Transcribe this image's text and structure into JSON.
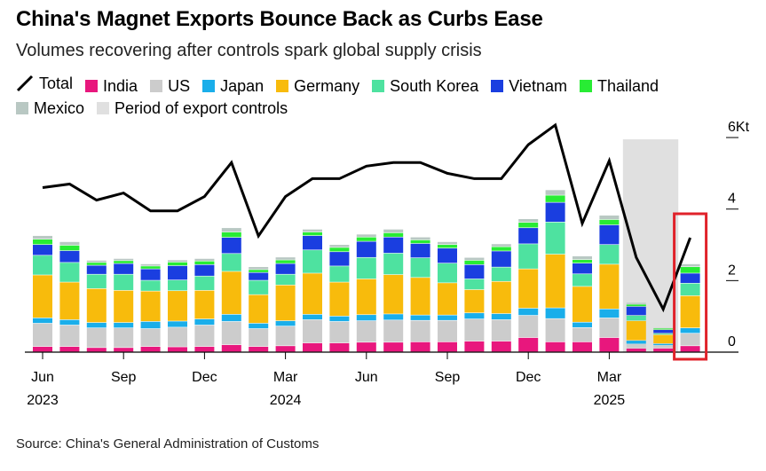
{
  "title": "China's Magnet Exports Bounce Back as Curbs Ease",
  "subtitle": "Volumes recovering after controls spark global supply crisis",
  "source": "Source: China's General Administration of Customs",
  "legend": [
    {
      "name": "Total",
      "color": "#000000",
      "kind": "line"
    },
    {
      "name": "India",
      "color": "#e8177d",
      "kind": "box"
    },
    {
      "name": "US",
      "color": "#cccccc",
      "kind": "box"
    },
    {
      "name": "Japan",
      "color": "#1aaeea",
      "kind": "box"
    },
    {
      "name": "Germany",
      "color": "#f8bb0c",
      "kind": "box"
    },
    {
      "name": "South Korea",
      "color": "#4ee2a0",
      "kind": "box"
    },
    {
      "name": "Vietnam",
      "color": "#1a3ee0",
      "kind": "box"
    },
    {
      "name": "Thailand",
      "color": "#28ec34",
      "kind": "box"
    },
    {
      "name": "Mexico",
      "color": "#b9c8c3",
      "kind": "box"
    },
    {
      "name": "Period of export controls",
      "color": "#e0e0e0",
      "kind": "box"
    }
  ],
  "chart_data": {
    "type": "bar",
    "categories": [
      "Jun 2023",
      "Jul 2023",
      "Aug 2023",
      "Sep 2023",
      "Oct 2023",
      "Nov 2023",
      "Dec 2023",
      "Jan 2024",
      "Feb 2024",
      "Mar 2024",
      "Apr 2024",
      "May 2024",
      "Jun 2024",
      "Jul 2024",
      "Aug 2024",
      "Sep 2024",
      "Oct 2024",
      "Nov 2024",
      "Dec 2024",
      "Jan 2025",
      "Feb 2025",
      "Mar 2025",
      "Apr 2025",
      "May 2025",
      "Jun 2025"
    ],
    "x_tick_labels": [
      {
        "index": 0,
        "label": "Jun",
        "year": "2023"
      },
      {
        "index": 3,
        "label": "Sep",
        "year": ""
      },
      {
        "index": 6,
        "label": "Dec",
        "year": ""
      },
      {
        "index": 9,
        "label": "Mar",
        "year": "2024"
      },
      {
        "index": 12,
        "label": "Jun",
        "year": ""
      },
      {
        "index": 15,
        "label": "Sep",
        "year": ""
      },
      {
        "index": 18,
        "label": "Dec",
        "year": ""
      },
      {
        "index": 21,
        "label": "Mar",
        "year": "2025"
      }
    ],
    "y_ticks": [
      {
        "value": 0,
        "label": "0"
      },
      {
        "value": 2,
        "label": "2"
      },
      {
        "value": 4,
        "label": "4"
      },
      {
        "value": 6,
        "label": "6Kt"
      }
    ],
    "ylim": [
      0,
      6.2
    ],
    "export_control_period": {
      "start_index": 22,
      "end_index": 23
    },
    "highlight_index": 24,
    "series": [
      {
        "name": "India",
        "values": [
          0.15,
          0.15,
          0.12,
          0.12,
          0.15,
          0.14,
          0.15,
          0.2,
          0.15,
          0.17,
          0.25,
          0.25,
          0.27,
          0.27,
          0.28,
          0.28,
          0.3,
          0.3,
          0.4,
          0.28,
          0.28,
          0.4,
          0.1,
          0.1,
          0.17
        ]
      },
      {
        "name": "US",
        "values": [
          0.65,
          0.6,
          0.55,
          0.55,
          0.5,
          0.55,
          0.6,
          0.65,
          0.5,
          0.55,
          0.65,
          0.6,
          0.6,
          0.62,
          0.6,
          0.6,
          0.62,
          0.6,
          0.62,
          0.65,
          0.4,
          0.55,
          0.12,
          0.08,
          0.35
        ]
      },
      {
        "name": "Japan",
        "values": [
          0.15,
          0.15,
          0.15,
          0.15,
          0.2,
          0.17,
          0.17,
          0.2,
          0.15,
          0.15,
          0.15,
          0.15,
          0.17,
          0.17,
          0.15,
          0.15,
          0.17,
          0.17,
          0.2,
          0.3,
          0.15,
          0.25,
          0.1,
          0.05,
          0.15
        ]
      },
      {
        "name": "Germany",
        "values": [
          1.2,
          1.05,
          0.95,
          0.9,
          0.85,
          0.85,
          0.8,
          1.2,
          0.8,
          1.0,
          1.15,
          0.95,
          1.0,
          1.1,
          1.05,
          0.9,
          0.65,
          0.9,
          1.1,
          1.5,
          1.0,
          1.25,
          0.55,
          0.25,
          0.9
        ]
      },
      {
        "name": "South Korea",
        "values": [
          0.55,
          0.55,
          0.4,
          0.45,
          0.3,
          0.3,
          0.4,
          0.5,
          0.4,
          0.3,
          0.65,
          0.45,
          0.6,
          0.6,
          0.55,
          0.55,
          0.3,
          0.4,
          0.7,
          0.9,
          0.35,
          0.55,
          0.15,
          0.04,
          0.35
        ]
      },
      {
        "name": "Vietnam",
        "values": [
          0.3,
          0.33,
          0.25,
          0.3,
          0.32,
          0.4,
          0.32,
          0.45,
          0.22,
          0.3,
          0.4,
          0.4,
          0.45,
          0.45,
          0.4,
          0.42,
          0.4,
          0.45,
          0.45,
          0.55,
          0.3,
          0.55,
          0.25,
          0.1,
          0.28
        ]
      },
      {
        "name": "Thailand",
        "values": [
          0.15,
          0.15,
          0.08,
          0.08,
          0.08,
          0.1,
          0.1,
          0.15,
          0.08,
          0.1,
          0.1,
          0.12,
          0.12,
          0.12,
          0.1,
          0.1,
          0.12,
          0.12,
          0.15,
          0.2,
          0.1,
          0.15,
          0.06,
          0.04,
          0.18
        ]
      },
      {
        "name": "Mexico",
        "values": [
          0.1,
          0.1,
          0.06,
          0.06,
          0.06,
          0.06,
          0.07,
          0.12,
          0.08,
          0.08,
          0.08,
          0.08,
          0.08,
          0.1,
          0.08,
          0.08,
          0.08,
          0.08,
          0.1,
          0.15,
          0.1,
          0.12,
          0.05,
          0.02,
          0.08
        ]
      }
    ],
    "total": {
      "name": "Total",
      "values": [
        4.6,
        4.7,
        4.25,
        4.45,
        3.95,
        3.95,
        4.35,
        5.3,
        3.25,
        4.35,
        4.85,
        4.85,
        5.2,
        5.3,
        5.3,
        5.0,
        4.85,
        4.85,
        5.8,
        6.35,
        3.6,
        5.35,
        2.65,
        1.2,
        3.2
      ]
    }
  }
}
